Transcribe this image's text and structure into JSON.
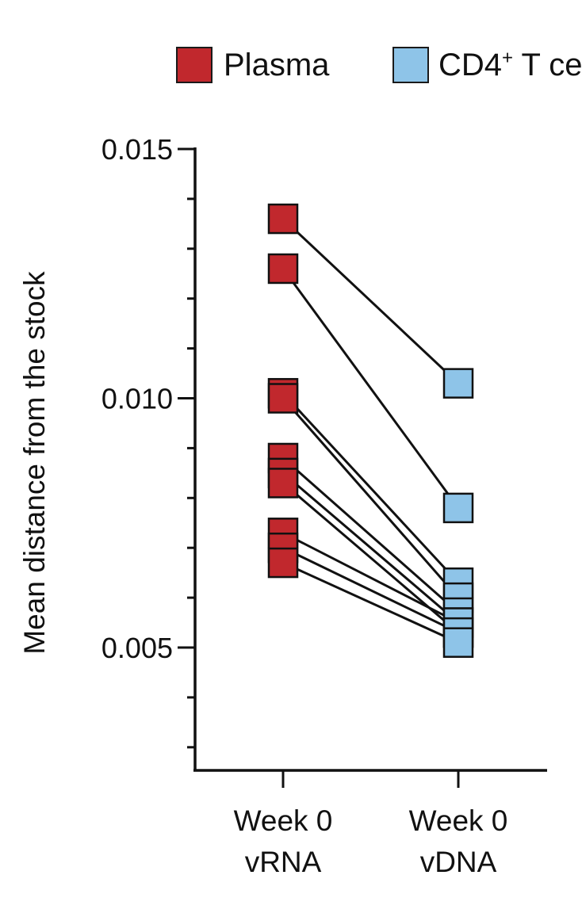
{
  "chart_data": {
    "type": "line",
    "ylabel": "Mean distance from the stock",
    "ylim": [
      0.0025,
      0.015
    ],
    "yticks": [
      0.005,
      0.01,
      0.015
    ],
    "ytick_labels": [
      "0.005",
      "0.010",
      "0.015"
    ],
    "categories": [
      {
        "line1": "Week 0",
        "line2": "vRNA"
      },
      {
        "line1": "Week 0",
        "line2": "vDNA"
      }
    ],
    "legend": [
      {
        "label": "Plasma",
        "color": "#c1282d"
      },
      {
        "label_prefix": "CD4",
        "label_sup": "+",
        "label_suffix": " T ce",
        "color": "#8ec4e8"
      }
    ],
    "pairs": [
      [
        0.0136,
        0.0103
      ],
      [
        0.0126,
        0.0078
      ],
      [
        0.0101,
        0.0063
      ],
      [
        0.01,
        0.006
      ],
      [
        0.0088,
        0.0057
      ],
      [
        0.0085,
        0.0055
      ],
      [
        0.0083,
        0.0053
      ],
      [
        0.0073,
        0.0055
      ],
      [
        0.007,
        0.0053
      ],
      [
        0.0067,
        0.0051
      ]
    ]
  }
}
